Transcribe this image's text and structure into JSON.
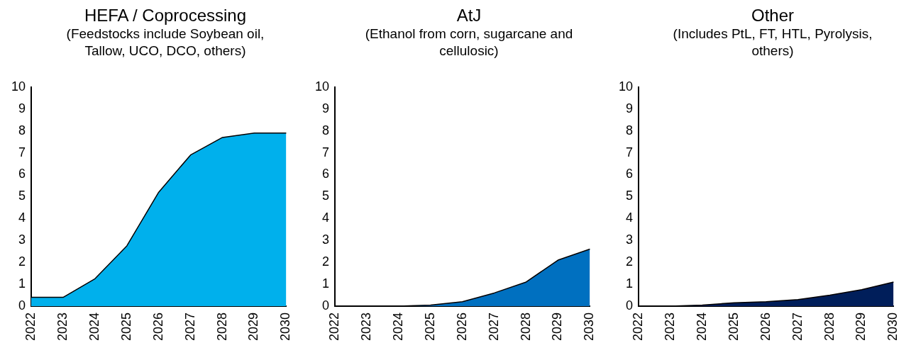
{
  "chart_data": [
    {
      "type": "area",
      "title": "HEFA / Coprocessing",
      "subtitle": "(Feedstocks include Soybean oil, Tallow, UCO, DCO, others)",
      "categories": [
        "2022",
        "2023",
        "2024",
        "2025",
        "2026",
        "2027",
        "2028",
        "2029",
        "2030"
      ],
      "series": [
        {
          "color": "#00b0ec",
          "values": [
            0.4,
            0.4,
            1.25,
            2.75,
            5.2,
            6.9,
            7.7,
            7.9,
            7.9
          ]
        }
      ],
      "ylim": [
        0,
        10
      ],
      "yticks": [
        0,
        1,
        2,
        3,
        4,
        5,
        6,
        7,
        8,
        9,
        10
      ],
      "grid": false,
      "legend": false
    },
    {
      "type": "area",
      "title": "AtJ",
      "subtitle": "(Ethanol from corn, sugarcane and cellulosic)",
      "categories": [
        "2022",
        "2023",
        "2024",
        "2025",
        "2026",
        "2027",
        "2028",
        "2029",
        "2030"
      ],
      "series": [
        {
          "color": "#0070c0",
          "values": [
            0,
            0,
            0,
            0.05,
            0.2,
            0.6,
            1.1,
            2.1,
            2.6
          ]
        }
      ],
      "ylim": [
        0,
        10
      ],
      "yticks": [
        0,
        1,
        2,
        3,
        4,
        5,
        6,
        7,
        8,
        9,
        10
      ],
      "grid": false,
      "legend": false
    },
    {
      "type": "area",
      "title": "Other",
      "subtitle": "(Includes PtL, FT, HTL, Pyrolysis, others)",
      "categories": [
        "2022",
        "2023",
        "2024",
        "2025",
        "2026",
        "2027",
        "2028",
        "2029",
        "2030"
      ],
      "series": [
        {
          "color": "#001e5a",
          "values": [
            0,
            0,
            0.05,
            0.15,
            0.2,
            0.3,
            0.5,
            0.75,
            1.1
          ]
        }
      ],
      "ylim": [
        0,
        10
      ],
      "yticks": [
        0,
        1,
        2,
        3,
        4,
        5,
        6,
        7,
        8,
        9,
        10
      ],
      "grid": false,
      "legend": false
    }
  ]
}
